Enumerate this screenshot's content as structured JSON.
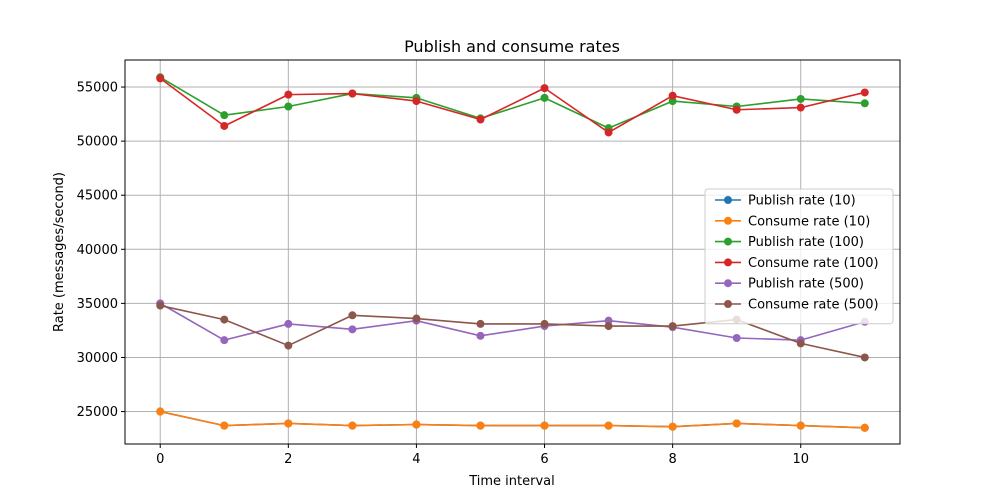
{
  "chart_data": {
    "type": "line",
    "title": "Publish and consume rates",
    "xlabel": "Time interval",
    "ylabel": "Rate (messages/second)",
    "x": [
      0,
      1,
      2,
      3,
      4,
      5,
      6,
      7,
      8,
      9,
      10,
      11
    ],
    "xlim": [
      -0.55,
      11.55
    ],
    "ylim": [
      22000,
      57500
    ],
    "xticks": [
      0,
      2,
      4,
      6,
      8,
      10
    ],
    "yticks": [
      25000,
      30000,
      35000,
      40000,
      45000,
      50000,
      55000
    ],
    "grid": true,
    "legend_position": "right",
    "series": [
      {
        "name": "Publish rate (10)",
        "color": "#1f77b4",
        "values": [
          25000,
          23700,
          23900,
          23700,
          23800,
          23700,
          23700,
          23700,
          23600,
          23900,
          23700,
          23500
        ]
      },
      {
        "name": "Consume rate (10)",
        "color": "#ff7f0e",
        "values": [
          25000,
          23700,
          23900,
          23700,
          23800,
          23700,
          23700,
          23700,
          23600,
          23900,
          23700,
          23500
        ]
      },
      {
        "name": "Publish rate (100)",
        "color": "#2ca02c",
        "values": [
          55900,
          52400,
          53200,
          54400,
          54000,
          52100,
          54000,
          51200,
          53700,
          53200,
          53900,
          53500
        ]
      },
      {
        "name": "Consume rate (100)",
        "color": "#d62728",
        "values": [
          55800,
          51400,
          54300,
          54400,
          53700,
          52000,
          54900,
          50800,
          54200,
          52900,
          53100,
          54500
        ]
      },
      {
        "name": "Publish rate (500)",
        "color": "#9467bd",
        "values": [
          35000,
          31600,
          33100,
          32600,
          33400,
          32000,
          32900,
          33400,
          32800,
          31800,
          31600,
          33300
        ]
      },
      {
        "name": "Consume rate (500)",
        "color": "#8c564b",
        "values": [
          34800,
          33500,
          31100,
          33900,
          33600,
          33100,
          33100,
          32900,
          32900,
          33500,
          31300,
          30000
        ]
      }
    ]
  }
}
